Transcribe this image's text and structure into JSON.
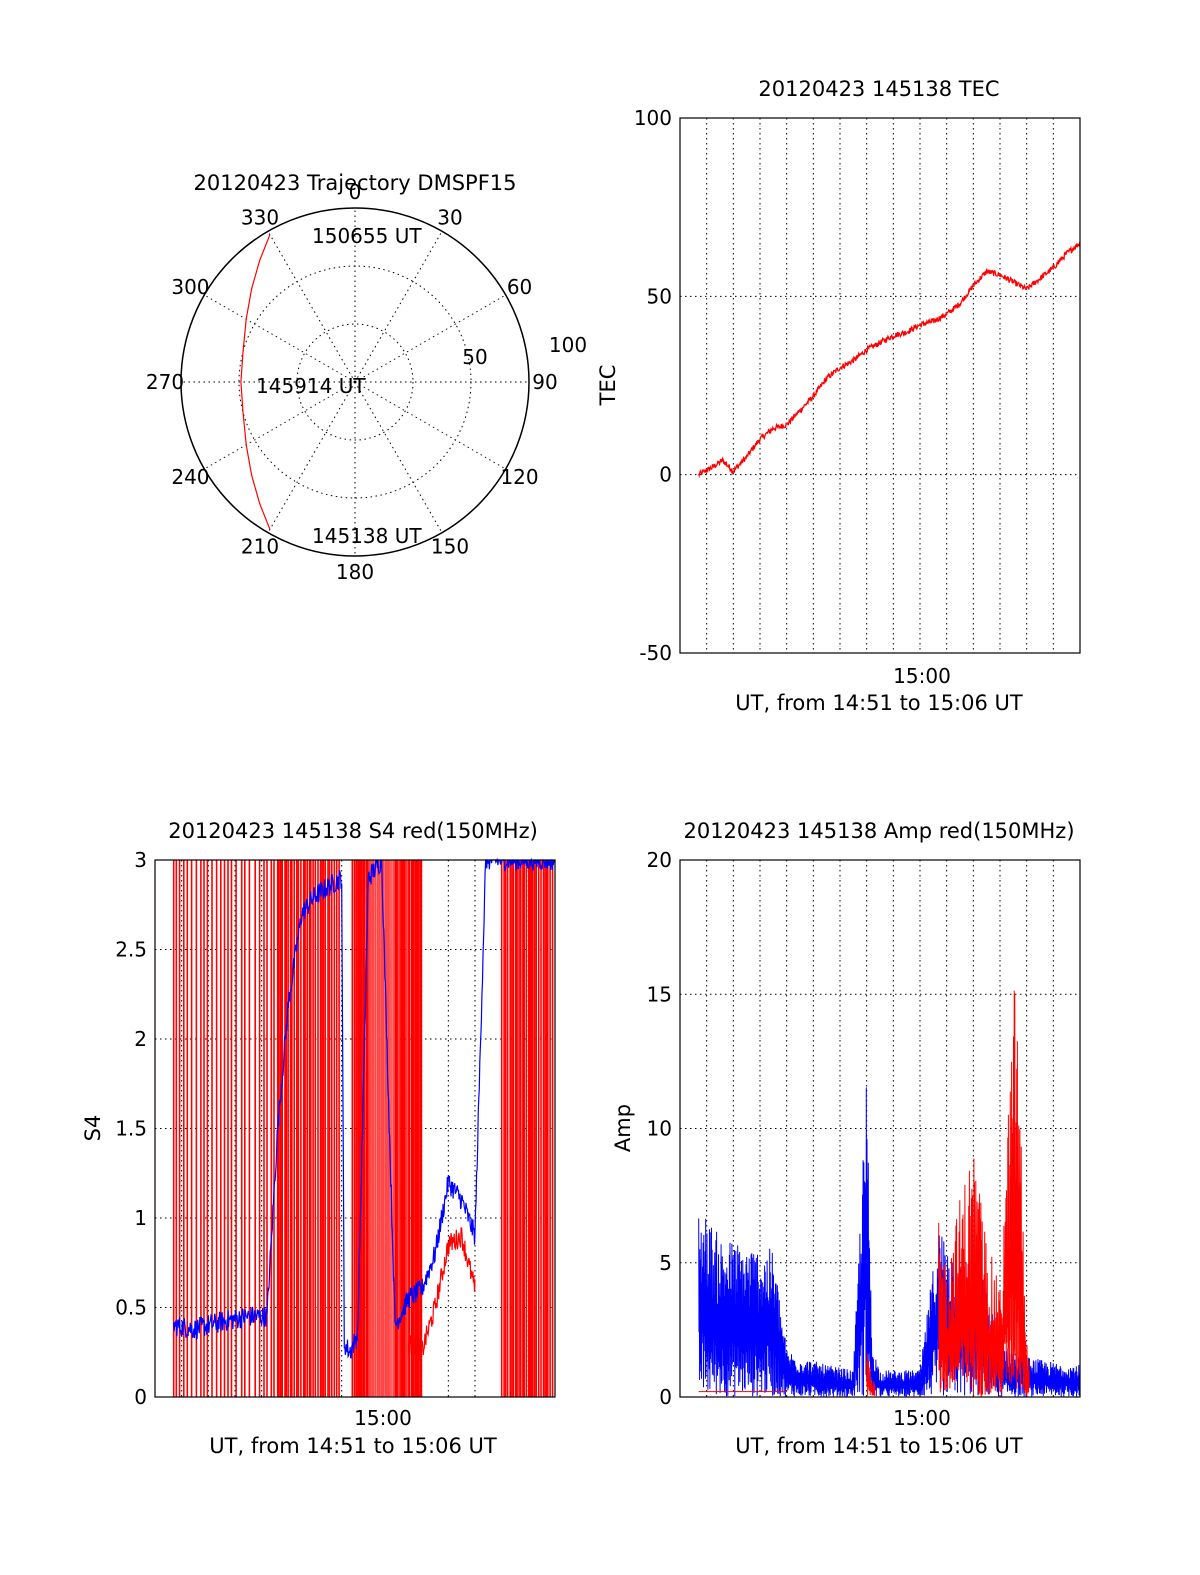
{
  "colors": {
    "red_series": "#ff0000",
    "blue_series": "#0000ff",
    "axes": "#000000",
    "background": "#ffffff"
  },
  "chart_data": [
    {
      "type": "polar",
      "title": "20120423 Trajectory DMSPF15",
      "azimuth_labels": [
        "0",
        "30",
        "60",
        "90",
        "120",
        "150",
        "180",
        "210",
        "240",
        "270",
        "300",
        "330"
      ],
      "radial_labels": [
        "50",
        "100"
      ],
      "radial_max": 90,
      "grid": true,
      "annotations": [
        "150655 UT",
        "145914 UT",
        "145138 UT"
      ],
      "series": [
        {
          "color": "#ff0000",
          "azimuth_deg": [
            210,
            218,
            228,
            240,
            255,
            270,
            285,
            300,
            312,
            322,
            330
          ],
          "zenith_angle": [
            88,
            80,
            72,
            65,
            60,
            59,
            60,
            65,
            72,
            80,
            88
          ]
        }
      ]
    },
    {
      "type": "line",
      "title": "20120423 145138 TEC",
      "xlabel": "UT, from 14:51 to 15:06 UT",
      "ylabel": "TEC",
      "x_tick_labels": [
        "15:00"
      ],
      "y_tick_labels": [
        "100",
        "50",
        "0",
        "-50"
      ],
      "xlim_minutes": [
        0,
        15
      ],
      "ylim": [
        -50,
        100
      ],
      "grid": true,
      "series": [
        {
          "color": "#ff0000",
          "x_minutes": [
            0.7,
            1.2,
            1.6,
            2.0,
            2.5,
            3.0,
            3.5,
            4.0,
            4.5,
            5.0,
            5.5,
            6.0,
            6.5,
            7.0,
            7.5,
            8.0,
            8.5,
            9.0,
            9.5,
            10.0,
            10.5,
            11.0,
            11.5,
            12.0,
            12.5,
            13.0,
            13.5,
            14.0,
            14.5,
            15.0
          ],
          "y": [
            0,
            2,
            4,
            1,
            5,
            10,
            13,
            14,
            18,
            22,
            27,
            30,
            32,
            35,
            37,
            39,
            40,
            42,
            43,
            45,
            48,
            53,
            57,
            56,
            54,
            52,
            55,
            58,
            62,
            65
          ]
        }
      ]
    },
    {
      "type": "line",
      "title": "20120423 145138 S4 red(150MHz)",
      "xlabel": "UT, from 14:51 to 15:06 UT",
      "ylabel": "S4",
      "x_tick_labels": [
        "15:00"
      ],
      "y_tick_labels": [
        "3",
        "2.5",
        "2",
        "1.5",
        "1",
        "0.5",
        "0"
      ],
      "xlim_minutes": [
        0,
        15
      ],
      "ylim": [
        0,
        3
      ],
      "grid": true,
      "series": [
        {
          "color": "#0000ff",
          "x_minutes": [
            0.7,
            1.5,
            2.5,
            3.5,
            4.2,
            4.6,
            5.0,
            5.5,
            6.0,
            7.0,
            7.1,
            7.3,
            7.6,
            8.0,
            8.5,
            9.0,
            9.5,
            10.0,
            10.5,
            11.0,
            11.5,
            12.0,
            12.4
          ],
          "y": [
            0.4,
            0.38,
            0.42,
            0.45,
            0.45,
            1.5,
            2.2,
            2.7,
            2.8,
            2.9,
            0.3,
            0.25,
            0.35,
            2.9,
            3.0,
            0.4,
            0.55,
            0.6,
            0.8,
            1.2,
            1.1,
            0.9,
            3.0
          ]
        },
        {
          "color": "#ff0000",
          "x_minutes": [
            9.5,
            10.0,
            10.5,
            11.0,
            11.5,
            12.0
          ],
          "y": [
            0.3,
            0.25,
            0.5,
            0.85,
            0.9,
            0.6
          ]
        }
      ]
    },
    {
      "type": "line",
      "title": "20120423 145138 Amp red(150MHz)",
      "xlabel": "UT, from 14:51 to 15:06 UT",
      "ylabel": "Amp",
      "x_tick_labels": [
        "15:00"
      ],
      "y_tick_labels": [
        "20",
        "15",
        "10",
        "5",
        "0"
      ],
      "xlim_minutes": [
        0,
        15
      ],
      "ylim": [
        0,
        20
      ],
      "grid": true,
      "series": [
        {
          "color": "#0000ff",
          "x_minutes": [
            0.7,
            1.5,
            2.5,
            3.5,
            4.0,
            4.5,
            5.5,
            6.5,
            7.0,
            7.2,
            7.5,
            8.0,
            9.0,
            9.7,
            10.0,
            10.5,
            11.0,
            11.5,
            12.0,
            13.0,
            14.0,
            15.0
          ],
          "y": [
            7.2,
            6.0,
            5.7,
            5.5,
            1.8,
            1.5,
            1.2,
            1.0,
            12.0,
            2.0,
            1.0,
            1.0,
            1.0,
            6.5,
            6.0,
            5.0,
            5.5,
            4.0,
            2.0,
            1.5,
            1.3,
            1.2
          ]
        },
        {
          "color": "#ff0000",
          "x_minutes": [
            7.0,
            7.2,
            9.7,
            10.0,
            10.5,
            11.0,
            11.5,
            12.0,
            12.6,
            13.0
          ],
          "y": [
            2.0,
            0.5,
            6.5,
            5.0,
            7.5,
            9.5,
            6.0,
            4.0,
            17.0,
            2.0
          ]
        }
      ]
    }
  ]
}
